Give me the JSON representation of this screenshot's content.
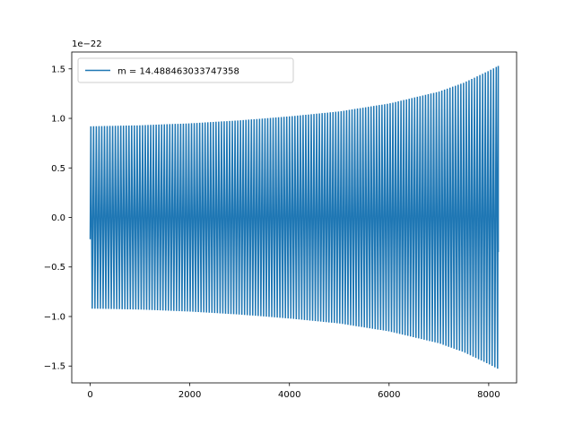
{
  "chart_data": {
    "type": "line",
    "title": "",
    "xlabel": "",
    "ylabel": "",
    "y_offset_text": "1e−22",
    "xlim": [
      -370,
      8560
    ],
    "ylim": [
      -1.67,
      1.67
    ],
    "x_ticks": [
      {
        "value": 0,
        "label": "0"
      },
      {
        "value": 2000,
        "label": "2000"
      },
      {
        "value": 4000,
        "label": "4000"
      },
      {
        "value": 6000,
        "label": "6000"
      },
      {
        "value": 8000,
        "label": "8000"
      }
    ],
    "y_ticks": [
      {
        "value": -1.5,
        "label": "−1.5"
      },
      {
        "value": -1.0,
        "label": "−1.0"
      },
      {
        "value": -0.5,
        "label": "−0.5"
      },
      {
        "value": 0.0,
        "label": "0.0"
      },
      {
        "value": 0.5,
        "label": "0.5"
      },
      {
        "value": 1.0,
        "label": "1.0"
      },
      {
        "value": 1.5,
        "label": "1.5"
      }
    ],
    "grid": false,
    "legend_position": "top-left",
    "series": [
      {
        "name": "m = 14.488463033747358",
        "color": "#1f77b4",
        "x_start": 0,
        "x_end": 8192,
        "y_start": -0.22,
        "y_end": -0.35,
        "envelope_x": [
          0,
          1000,
          2000,
          3000,
          4000,
          5000,
          6000,
          7000,
          7500,
          8000,
          8192
        ],
        "envelope_amplitude": [
          0.92,
          0.93,
          0.95,
          0.98,
          1.02,
          1.07,
          1.15,
          1.27,
          1.36,
          1.48,
          1.53
        ],
        "cycles_visible": 150
      }
    ]
  }
}
